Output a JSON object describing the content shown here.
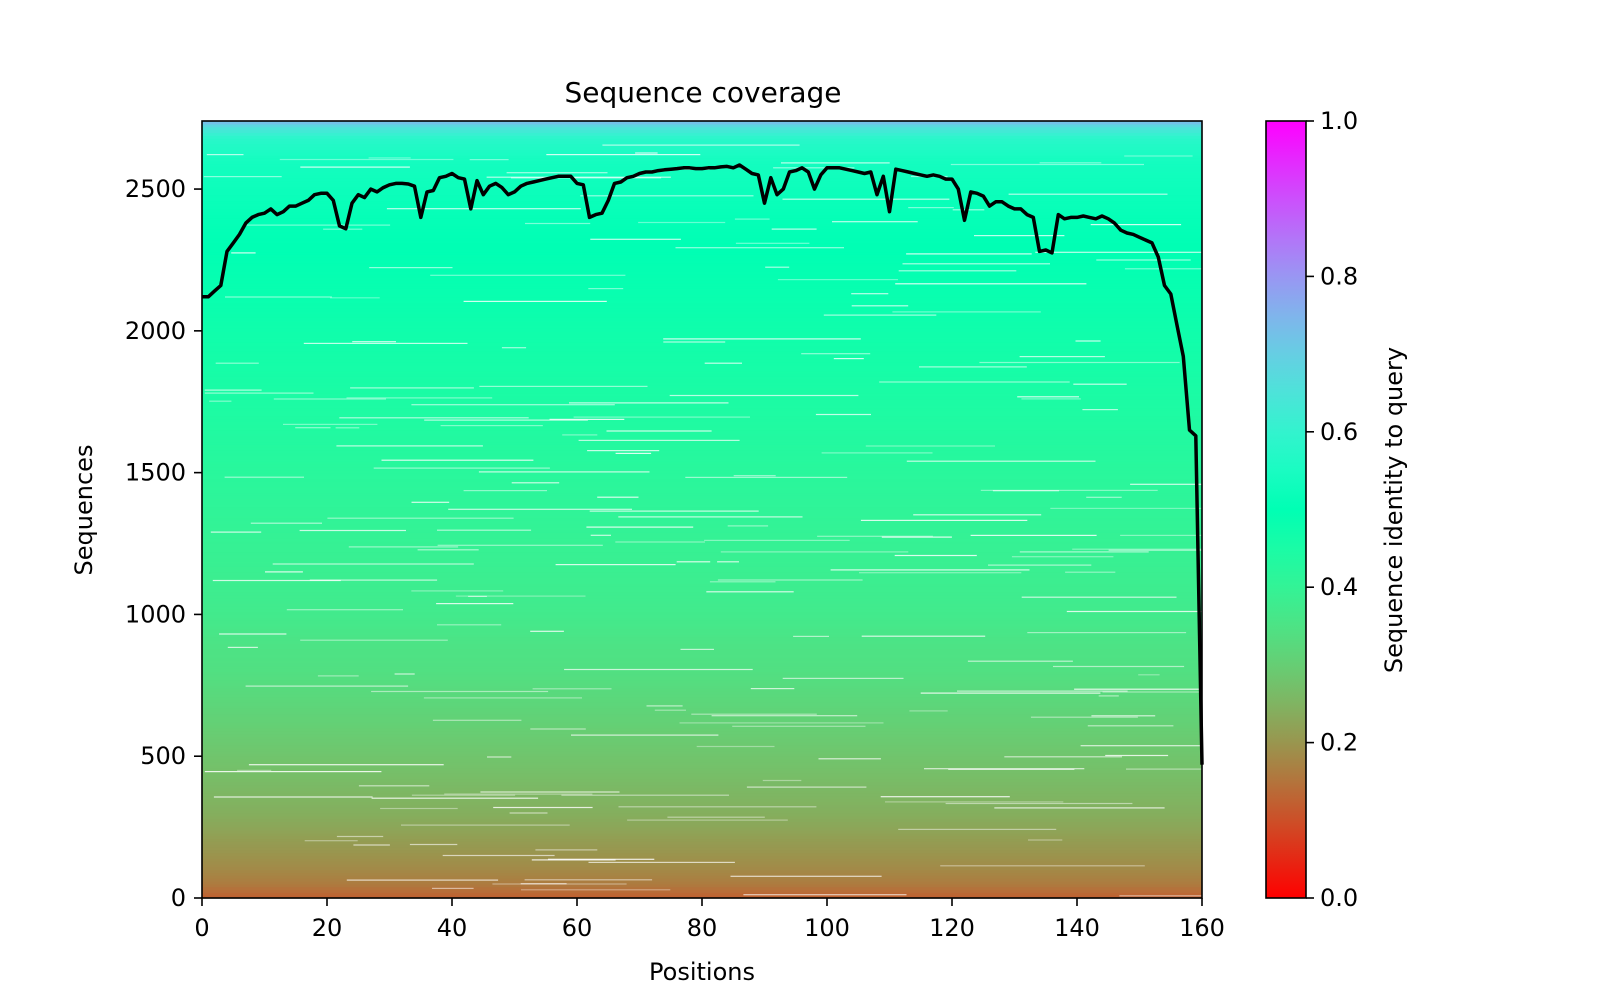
{
  "chart_data": {
    "type": "heatmap",
    "title": "Sequence coverage",
    "xlabel": "Positions",
    "ylabel": "Sequences",
    "xlim": [
      0,
      160
    ],
    "ylim": [
      0,
      2740
    ],
    "x_ticks": [
      "0",
      "20",
      "40",
      "60",
      "80",
      "100",
      "120",
      "140",
      "160"
    ],
    "x_tick_values": [
      0,
      20,
      40,
      60,
      80,
      100,
      120,
      140,
      160
    ],
    "y_ticks": [
      "0",
      "500",
      "1000",
      "1500",
      "2000",
      "2500"
    ],
    "y_tick_values": [
      0,
      500,
      1000,
      1500,
      2000,
      2500
    ],
    "colorbar": {
      "label": "Sequence identity to query",
      "colormap": "rainbow_r",
      "range": [
        0,
        1
      ],
      "ticks": [
        "0.0",
        "0.2",
        "0.4",
        "0.6",
        "0.8",
        "1.0"
      ],
      "tick_values": [
        0,
        0.2,
        0.4,
        0.6,
        0.8,
        1.0
      ]
    },
    "identity_profile": {
      "rows": [
        0,
        50,
        100,
        200,
        300,
        400,
        500,
        600,
        700,
        800,
        900,
        1000,
        1200,
        1400,
        1600,
        1800,
        2000,
        2200,
        2400,
        2600,
        2680,
        2720,
        2740
      ],
      "identity": [
        0.12,
        0.16,
        0.18,
        0.21,
        0.24,
        0.26,
        0.28,
        0.3,
        0.32,
        0.34,
        0.35,
        0.37,
        0.39,
        0.41,
        0.43,
        0.45,
        0.47,
        0.49,
        0.51,
        0.54,
        0.58,
        0.66,
        0.75
      ]
    },
    "series": [
      {
        "values": [
          [
            0,
            2120
          ],
          [
            1,
            2120
          ],
          [
            2,
            2140
          ],
          [
            3,
            2160
          ],
          [
            4,
            2280
          ],
          [
            5,
            2310
          ],
          [
            6,
            2340
          ],
          [
            7,
            2380
          ],
          [
            8,
            2400
          ],
          [
            9,
            2410
          ],
          [
            10,
            2415
          ],
          [
            11,
            2430
          ],
          [
            12,
            2410
          ],
          [
            13,
            2420
          ],
          [
            14,
            2440
          ],
          [
            15,
            2440
          ],
          [
            16,
            2450
          ],
          [
            17,
            2460
          ],
          [
            18,
            2480
          ],
          [
            19,
            2485
          ],
          [
            20,
            2485
          ],
          [
            21,
            2460
          ],
          [
            22,
            2370
          ],
          [
            23,
            2360
          ],
          [
            24,
            2450
          ],
          [
            25,
            2480
          ],
          [
            26,
            2470
          ],
          [
            27,
            2500
          ],
          [
            28,
            2490
          ],
          [
            29,
            2505
          ],
          [
            30,
            2515
          ],
          [
            31,
            2520
          ],
          [
            32,
            2520
          ],
          [
            33,
            2518
          ],
          [
            34,
            2510
          ],
          [
            35,
            2400
          ],
          [
            36,
            2490
          ],
          [
            37,
            2495
          ],
          [
            38,
            2540
          ],
          [
            39,
            2545
          ],
          [
            40,
            2555
          ],
          [
            41,
            2540
          ],
          [
            42,
            2535
          ],
          [
            43,
            2430
          ],
          [
            44,
            2530
          ],
          [
            45,
            2480
          ],
          [
            46,
            2510
          ],
          [
            47,
            2520
          ],
          [
            48,
            2505
          ],
          [
            49,
            2480
          ],
          [
            50,
            2490
          ],
          [
            51,
            2510
          ],
          [
            52,
            2520
          ],
          [
            53,
            2525
          ],
          [
            54,
            2530
          ],
          [
            55,
            2535
          ],
          [
            56,
            2540
          ],
          [
            57,
            2545
          ],
          [
            58,
            2545
          ],
          [
            59,
            2545
          ],
          [
            60,
            2520
          ],
          [
            61,
            2515
          ],
          [
            62,
            2400
          ],
          [
            63,
            2410
          ],
          [
            64,
            2415
          ],
          [
            65,
            2460
          ],
          [
            66,
            2520
          ],
          [
            67,
            2525
          ],
          [
            68,
            2540
          ],
          [
            69,
            2545
          ],
          [
            70,
            2555
          ],
          [
            71,
            2560
          ],
          [
            72,
            2560
          ],
          [
            73,
            2565
          ],
          [
            74,
            2568
          ],
          [
            75,
            2570
          ],
          [
            76,
            2572
          ],
          [
            77,
            2575
          ],
          [
            78,
            2575
          ],
          [
            79,
            2572
          ],
          [
            80,
            2572
          ],
          [
            81,
            2575
          ],
          [
            82,
            2575
          ],
          [
            83,
            2578
          ],
          [
            84,
            2580
          ],
          [
            85,
            2575
          ],
          [
            86,
            2585
          ],
          [
            87,
            2570
          ],
          [
            88,
            2555
          ],
          [
            89,
            2550
          ],
          [
            90,
            2450
          ],
          [
            91,
            2540
          ],
          [
            92,
            2480
          ],
          [
            93,
            2500
          ],
          [
            94,
            2560
          ],
          [
            95,
            2565
          ],
          [
            96,
            2575
          ],
          [
            97,
            2560
          ],
          [
            98,
            2500
          ],
          [
            99,
            2550
          ],
          [
            100,
            2575
          ],
          [
            101,
            2575
          ],
          [
            102,
            2575
          ],
          [
            103,
            2570
          ],
          [
            104,
            2565
          ],
          [
            105,
            2560
          ],
          [
            106,
            2555
          ],
          [
            107,
            2560
          ],
          [
            108,
            2480
          ],
          [
            109,
            2545
          ],
          [
            110,
            2420
          ],
          [
            111,
            2570
          ],
          [
            112,
            2565
          ],
          [
            113,
            2560
          ],
          [
            114,
            2555
          ],
          [
            115,
            2550
          ],
          [
            116,
            2545
          ],
          [
            117,
            2550
          ],
          [
            118,
            2545
          ],
          [
            119,
            2535
          ],
          [
            120,
            2535
          ],
          [
            121,
            2500
          ],
          [
            122,
            2390
          ],
          [
            123,
            2490
          ],
          [
            124,
            2485
          ],
          [
            125,
            2475
          ],
          [
            126,
            2440
          ],
          [
            127,
            2455
          ],
          [
            128,
            2455
          ],
          [
            129,
            2440
          ],
          [
            130,
            2430
          ],
          [
            131,
            2430
          ],
          [
            132,
            2410
          ],
          [
            133,
            2400
          ],
          [
            134,
            2280
          ],
          [
            135,
            2285
          ],
          [
            136,
            2275
          ],
          [
            137,
            2410
          ],
          [
            138,
            2395
          ],
          [
            139,
            2400
          ],
          [
            140,
            2400
          ],
          [
            141,
            2405
          ],
          [
            142,
            2400
          ],
          [
            143,
            2395
          ],
          [
            144,
            2405
          ],
          [
            145,
            2395
          ],
          [
            146,
            2380
          ],
          [
            147,
            2355
          ],
          [
            148,
            2345
          ],
          [
            149,
            2340
          ],
          [
            150,
            2330
          ],
          [
            151,
            2320
          ],
          [
            152,
            2310
          ],
          [
            153,
            2260
          ],
          [
            154,
            2160
          ],
          [
            155,
            2130
          ],
          [
            156,
            2020
          ],
          [
            157,
            1910
          ],
          [
            158,
            1650
          ],
          [
            159,
            1630
          ],
          [
            160,
            470
          ]
        ]
      }
    ]
  }
}
